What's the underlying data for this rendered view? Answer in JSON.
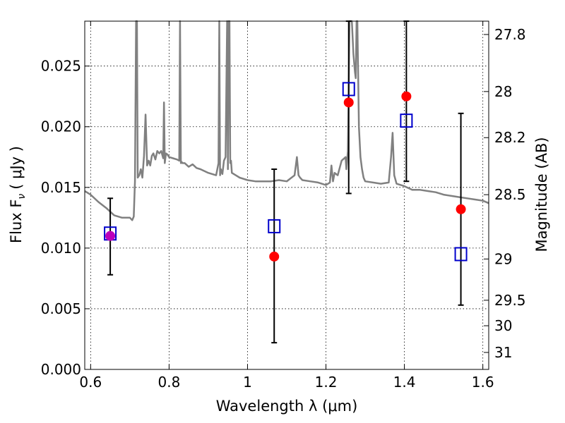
{
  "chart_data": {
    "type": "scatter",
    "xlabel": "Wavelength  λ (μm)",
    "ylabel_left": "Flux  F",
    "ylabel_left_sub": "ν",
    "ylabel_left_unit": "( μJy )",
    "ylabel_right": "Magnitude (AB)",
    "xlim": [
      0.585,
      1.615
    ],
    "ylim": [
      0.0,
      0.0287
    ],
    "xticks": [
      0.6,
      0.8,
      1.0,
      1.2,
      1.4,
      1.6
    ],
    "xtick_labels": [
      "0.6",
      "0.8",
      "1",
      "1.2",
      "1.4",
      "1.6"
    ],
    "yticks": [
      0.0,
      0.005,
      0.01,
      0.015,
      0.02,
      0.025
    ],
    "ytick_labels": [
      "0.000",
      "0.005",
      "0.010",
      "0.015",
      "0.020",
      "0.025"
    ],
    "right_ticks": [
      {
        "label": "27.8",
        "flux": 0.0276
      },
      {
        "label": "28",
        "flux": 0.0229
      },
      {
        "label": "28.2",
        "flux": 0.0191
      },
      {
        "label": "28.5",
        "flux": 0.0144
      },
      {
        "label": "29",
        "flux": 0.0091
      },
      {
        "label": "29.5",
        "flux": 0.0057
      },
      {
        "label": "30",
        "flux": 0.0036
      },
      {
        "label": "31",
        "flux": 0.0014
      }
    ],
    "grid": true,
    "series": [
      {
        "kind": "line",
        "color": "#808080",
        "x": [
          0.585,
          0.6,
          0.62,
          0.64,
          0.66,
          0.68,
          0.7,
          0.706,
          0.71,
          0.713,
          0.716,
          0.718,
          0.72,
          0.724,
          0.728,
          0.732,
          0.736,
          0.74,
          0.744,
          0.748,
          0.752,
          0.756,
          0.76,
          0.765,
          0.77,
          0.775,
          0.78,
          0.785,
          0.787,
          0.789,
          0.792,
          0.796,
          0.8,
          0.81,
          0.82,
          0.826,
          0.828,
          0.83,
          0.832,
          0.834,
          0.84,
          0.85,
          0.86,
          0.87,
          0.88,
          0.9,
          0.92,
          0.926,
          0.928,
          0.93,
          0.932,
          0.936,
          0.94,
          0.944,
          0.948,
          0.95,
          0.952,
          0.954,
          0.956,
          0.958,
          0.96,
          0.97,
          0.98,
          1.0,
          1.02,
          1.04,
          1.06,
          1.08,
          1.1,
          1.12,
          1.126,
          1.13,
          1.134,
          1.14,
          1.16,
          1.18,
          1.2,
          1.21,
          1.214,
          1.218,
          1.222,
          1.23,
          1.24,
          1.25,
          1.252,
          1.256,
          1.26,
          1.264,
          1.266,
          1.27,
          1.274,
          1.276,
          1.278,
          1.28,
          1.284,
          1.288,
          1.292,
          1.296,
          1.3,
          1.32,
          1.34,
          1.36,
          1.366,
          1.37,
          1.374,
          1.38,
          1.4,
          1.42,
          1.44,
          1.46,
          1.48,
          1.5,
          1.52,
          1.54,
          1.56,
          1.58,
          1.6,
          1.615
        ],
        "y": [
          0.0147,
          0.0144,
          0.0138,
          0.0133,
          0.0127,
          0.0125,
          0.0125,
          0.0123,
          0.0126,
          0.0155,
          0.032,
          0.032,
          0.0158,
          0.016,
          0.0165,
          0.0158,
          0.0176,
          0.021,
          0.0168,
          0.0172,
          0.0168,
          0.0176,
          0.0178,
          0.0173,
          0.018,
          0.0178,
          0.018,
          0.0174,
          0.022,
          0.017,
          0.0178,
          0.0177,
          0.0175,
          0.0174,
          0.0173,
          0.0172,
          0.032,
          0.017,
          0.0171,
          0.017,
          0.017,
          0.0167,
          0.0169,
          0.0166,
          0.0165,
          0.0162,
          0.016,
          0.017,
          0.032,
          0.016,
          0.0165,
          0.0161,
          0.0172,
          0.0175,
          0.032,
          0.0165,
          0.03,
          0.032,
          0.017,
          0.0172,
          0.0162,
          0.016,
          0.0158,
          0.0156,
          0.0155,
          0.0155,
          0.0155,
          0.0156,
          0.0155,
          0.016,
          0.0175,
          0.016,
          0.0158,
          0.0156,
          0.0155,
          0.0154,
          0.0152,
          0.0154,
          0.0168,
          0.0155,
          0.0162,
          0.016,
          0.0172,
          0.0175,
          0.0165,
          0.018,
          0.032,
          0.032,
          0.03,
          0.026,
          0.0245,
          0.024,
          0.032,
          0.032,
          0.02,
          0.0175,
          0.0165,
          0.0158,
          0.0155,
          0.0154,
          0.0153,
          0.0154,
          0.0175,
          0.0195,
          0.016,
          0.0153,
          0.0151,
          0.0148,
          0.0148,
          0.0147,
          0.0146,
          0.0144,
          0.0143,
          0.0142,
          0.0141,
          0.014,
          0.0139,
          0.0137
        ]
      },
      {
        "kind": "errorbar",
        "color": "#000000",
        "points": [
          {
            "x": 0.65,
            "low": 0.0078,
            "high": 0.0141
          },
          {
            "x": 1.068,
            "low": 0.0022,
            "high": 0.0165
          },
          {
            "x": 1.258,
            "low": 0.0145,
            "high": 0.0292
          },
          {
            "x": 1.405,
            "low": 0.0155,
            "high": 0.0292
          },
          {
            "x": 1.544,
            "low": 0.0053,
            "high": 0.0211
          }
        ]
      },
      {
        "kind": "open-square",
        "color": "#0000cc",
        "x": [
          0.65,
          1.068,
          1.258,
          1.405,
          1.544
        ],
        "y": [
          0.0112,
          0.0118,
          0.0231,
          0.0205,
          0.0095
        ]
      },
      {
        "kind": "filled-circle",
        "color": "#ff0000",
        "x": [
          0.65,
          1.068,
          1.258,
          1.405,
          1.544
        ],
        "y": [
          0.011,
          0.0093,
          0.022,
          0.0225,
          0.0132
        ],
        "first_point_color": "#bb00bb"
      }
    ]
  }
}
